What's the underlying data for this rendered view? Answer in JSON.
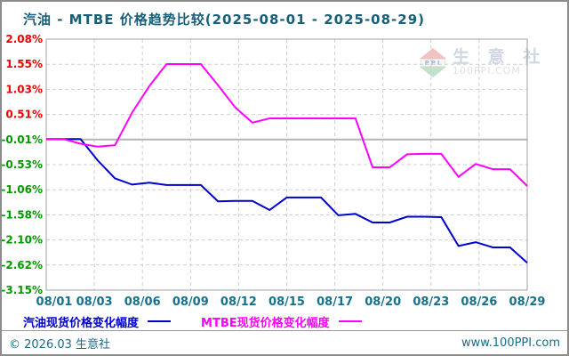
{
  "title": "汽油 - MTBE 价格趋势比较(2025-08-01 - 2025-08-29)",
  "chart_data": {
    "type": "line",
    "x_dates": [
      "08/01",
      "08/02",
      "08/03",
      "08/04",
      "08/05",
      "08/06",
      "08/07",
      "08/08",
      "08/09",
      "08/10",
      "08/11",
      "08/12",
      "08/13",
      "08/14",
      "08/15",
      "08/16",
      "08/17",
      "08/18",
      "08/19",
      "08/20",
      "08/21",
      "08/22",
      "08/23",
      "08/24",
      "08/25",
      "08/26",
      "08/27",
      "08/28",
      "08/29"
    ],
    "x_tick_labels": [
      "08/01",
      "08/03",
      "08/06",
      "08/09",
      "08/12",
      "08/15",
      "08/17",
      "08/20",
      "08/23",
      "08/26",
      "08/29"
    ],
    "y_tick_labels": [
      "2.08%",
      "1.55%",
      "1.03%",
      "0.51%",
      "-0.01%",
      "-0.53%",
      "-1.06%",
      "-1.58%",
      "-2.10%",
      "-2.62%",
      "-3.15%"
    ],
    "ylim": [
      -3.15,
      2.08
    ],
    "grid": "dashed",
    "zero_line_value": -0.01,
    "legend_position": "bottom",
    "series": [
      {
        "name": "汽油现货价格变化幅度",
        "color": "#0000cc",
        "values": [
          0.0,
          0.0,
          0.0,
          -0.45,
          -0.82,
          -0.95,
          -0.91,
          -0.96,
          -0.96,
          -0.96,
          -1.3,
          -1.29,
          -1.29,
          -1.48,
          -1.22,
          -1.22,
          -1.22,
          -1.59,
          -1.56,
          -1.74,
          -1.74,
          -1.62,
          -1.62,
          -1.63,
          -2.23,
          -2.15,
          -2.26,
          -2.26,
          -2.58
        ]
      },
      {
        "name": "MTBE现货价格变化幅度",
        "color": "#ff00ff",
        "values": [
          0.0,
          0.0,
          -0.1,
          -0.16,
          -0.13,
          0.55,
          1.1,
          1.56,
          1.56,
          1.56,
          1.12,
          0.66,
          0.34,
          0.43,
          0.43,
          0.43,
          0.43,
          0.43,
          0.43,
          -0.59,
          -0.59,
          -0.32,
          -0.31,
          -0.31,
          -0.79,
          -0.52,
          -0.63,
          -0.63,
          -0.98
        ]
      }
    ]
  },
  "watermark": {
    "logo_text": "PPI",
    "brand": "生 意 社",
    "site": "100PPI.COM"
  },
  "footer": {
    "left": "© 2026.03 生意社",
    "right": "www.100PPI.com"
  },
  "colors": {
    "title": "#155f79",
    "axis_date": "#17718c",
    "positive_tick": "#ee0000",
    "negative_tick": "#009900",
    "frame": "#a0a0a0",
    "grid": "#cfcfcf",
    "zero_line": "#b5b5b5",
    "footer_text": "#1a6b8a",
    "gasoline_line": "#0000cc",
    "mtbe_line": "#ff00ff"
  }
}
